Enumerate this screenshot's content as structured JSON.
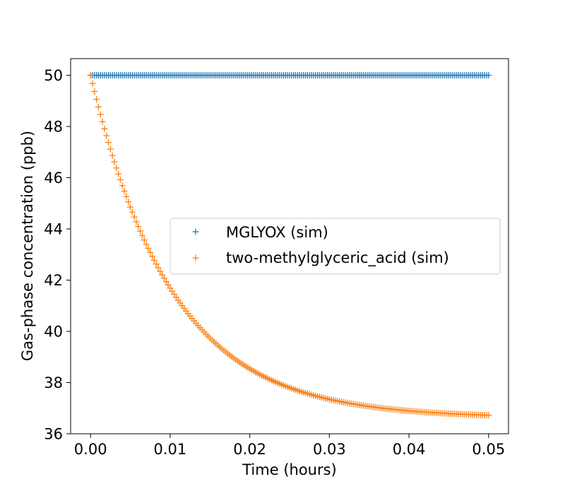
{
  "chart_data": {
    "type": "scatter",
    "xlabel": "Time (hours)",
    "ylabel": "Gas-phase concentration (ppb)",
    "xlim": [
      -0.0025,
      0.0525
    ],
    "ylim": [
      36.0,
      50.65
    ],
    "xticks": [
      0.0,
      0.01,
      0.02,
      0.03,
      0.04,
      0.05
    ],
    "xtick_labels": [
      "0.00",
      "0.01",
      "0.02",
      "0.03",
      "0.04",
      "0.05"
    ],
    "yticks": [
      36,
      38,
      40,
      42,
      44,
      46,
      48,
      50
    ],
    "ytick_labels": [
      "36",
      "38",
      "40",
      "42",
      "44",
      "46",
      "48",
      "50"
    ],
    "grid": false,
    "legend_position": "center-right",
    "marker": "+",
    "x_start": 0.0,
    "x_end": 0.05,
    "n_points": 201,
    "series": [
      {
        "name": "MGLYOX (sim)",
        "color": "#1f77b4",
        "model": "constant",
        "value": 50.0
      },
      {
        "name": "two-methylglyceric_acid (sim)",
        "color": "#ff7f0e",
        "model": "exponential_decay",
        "initial": 50.0,
        "asymptote": 36.62,
        "time_constant_hours": 0.0103
      }
    ]
  }
}
